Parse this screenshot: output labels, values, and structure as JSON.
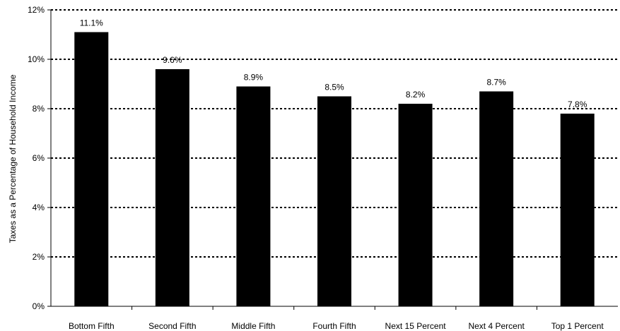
{
  "chart_data": {
    "type": "bar",
    "categories": [
      "Bottom Fifth",
      "Second Fifth",
      "Middle Fifth",
      "Fourth Fifth",
      "Next 15 Percent",
      "Next 4 Percent",
      "Top 1 Percent"
    ],
    "values": [
      11.1,
      9.6,
      8.9,
      8.5,
      8.2,
      8.7,
      7.8
    ],
    "data_labels": [
      "11.1%",
      "9.6%",
      "8.9%",
      "8.5%",
      "8.2%",
      "8.7%",
      "7.8%"
    ],
    "title": "",
    "xlabel": "",
    "ylabel": "Taxes as a Percentage of Household Income",
    "ylim": [
      0,
      12
    ],
    "yticks": [
      0,
      2,
      4,
      6,
      8,
      10,
      12
    ],
    "ytick_labels": [
      "0%",
      "2%",
      "4%",
      "6%",
      "8%",
      "10%",
      "12%"
    ],
    "grid": "horizontal dotted",
    "bar_color": "#000000"
  }
}
